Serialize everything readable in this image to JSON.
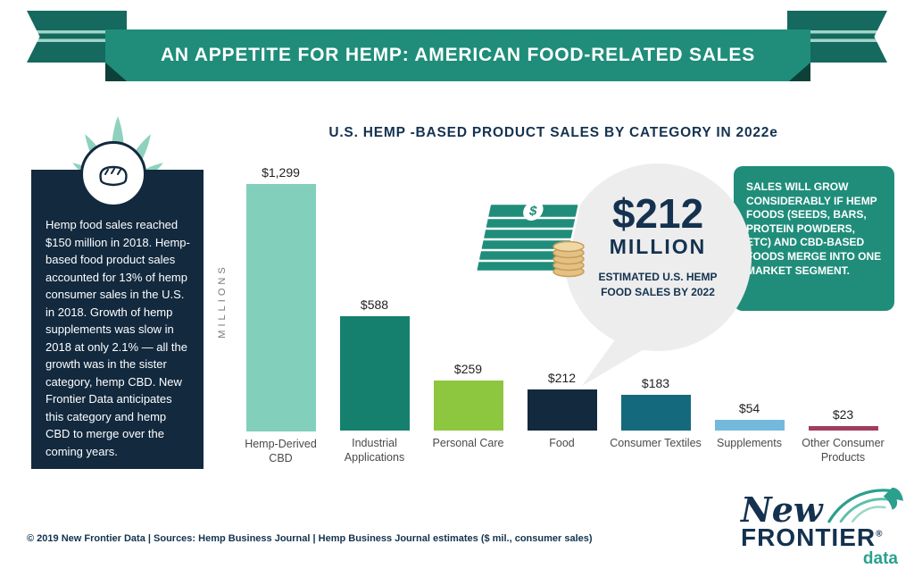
{
  "banner": {
    "title": "AN APPETITE FOR HEMP: AMERICAN FOOD-RELATED SALES"
  },
  "section": {
    "title": "U.S. HEMP -BASED PRODUCT SALES BY CATEGORY IN 2022e"
  },
  "sidebar": {
    "text": "Hemp food sales reached $150 million in 2018. Hemp-based food product sales accounted for 13% of hemp consumer sales in the U.S. in 2018. Growth of hemp supplements was slow in 2018 at only 2.1% — all the growth was in the sister category, hemp CBD. New Frontier Data anticipates this category and hemp CBD to merge over the coming years."
  },
  "chart_data": {
    "type": "bar",
    "title": "U.S. HEMP -BASED PRODUCT SALES BY CATEGORY IN 2022e",
    "ylabel": "MILLIONS",
    "categories": [
      "Hemp-Derived CBD",
      "Industrial Applications",
      "Personal Care",
      "Food",
      "Consumer Textiles",
      "Supplements",
      "Other Consumer Products"
    ],
    "values": [
      1299,
      588,
      259,
      212,
      183,
      54,
      23
    ],
    "value_labels": [
      "$1,299",
      "$588",
      "$259",
      "$212",
      "$183",
      "$54",
      "$23"
    ],
    "bar_colors": [
      "#82cfbc",
      "#15806e",
      "#8dc63f",
      "#12293e",
      "#15697d",
      "#74b9dc",
      "#a23e5d"
    ],
    "ylim": [
      0,
      1300
    ],
    "grid": false,
    "legend": false
  },
  "callout": {
    "amount": "$212",
    "unit": "MILLION",
    "caption": "ESTIMATED U.S. HEMP FOOD SALES BY 2022"
  },
  "note_box": {
    "text": "SALES WILL GROW CONSIDERABLY IF HEMP FOODS (SEEDS, BARS, PROTEIN POWDERS, ETC) AND CBD-BASED FOODS MERGE INTO ONE MARKET SEGMENT."
  },
  "footer": {
    "text": "© 2019 New Frontier Data |  Sources: Hemp Business Journal | Hemp Business Journal estimates ($ mil., consumer sales)"
  },
  "logo": {
    "word1": "New",
    "word2": "FRONTIER",
    "reg": "®",
    "word3": "data"
  },
  "colors": {
    "teal": "#1f8d7a",
    "navy": "#12293e",
    "mint": "#8ed1bf",
    "bubble_gray": "#ededed",
    "gold": "#e4c183"
  }
}
